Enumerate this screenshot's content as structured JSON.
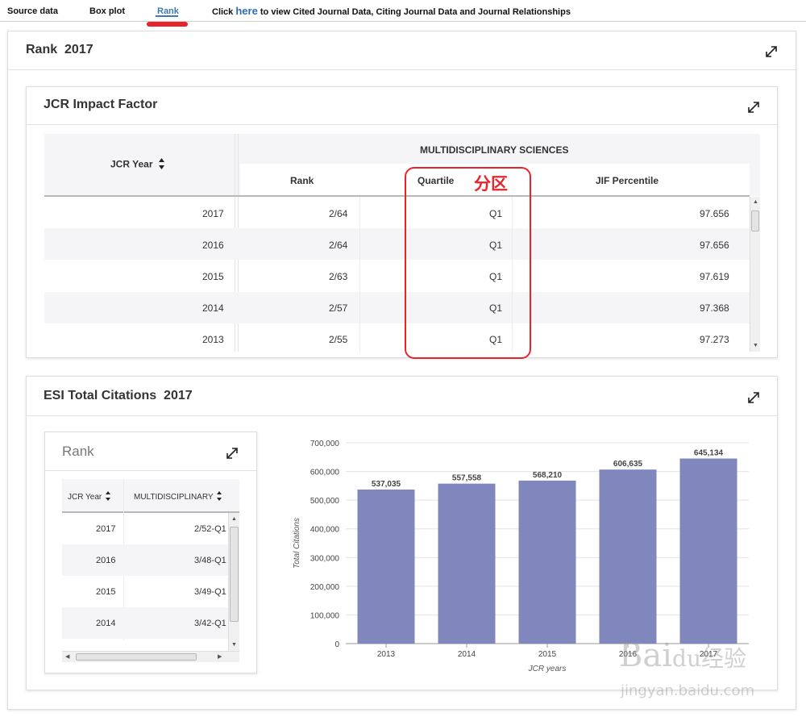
{
  "nav": {
    "tabs": [
      {
        "label": "Source data"
      },
      {
        "label": "Box plot"
      },
      {
        "label": "Rank"
      }
    ],
    "link_prefix": "Click",
    "link_word": "here",
    "link_suffix": "to view Cited Journal Data, Citing Journal Data and Journal Relationships"
  },
  "rank_panel": {
    "title": "Rank",
    "year": "2017"
  },
  "jcr": {
    "title": "JCR Impact Factor",
    "col_year": "JCR Year",
    "group_header": "MULTIDISCIPLINARY SCIENCES",
    "col_rank": "Rank",
    "col_quartile": "Quartile",
    "col_percentile": "JIF Percentile",
    "annotation": "分区",
    "rows": [
      {
        "year": "2017",
        "rank": "2/64",
        "quartile": "Q1",
        "percentile": "97.656"
      },
      {
        "year": "2016",
        "rank": "2/64",
        "quartile": "Q1",
        "percentile": "97.656"
      },
      {
        "year": "2015",
        "rank": "2/63",
        "quartile": "Q1",
        "percentile": "97.619"
      },
      {
        "year": "2014",
        "rank": "2/57",
        "quartile": "Q1",
        "percentile": "97.368"
      },
      {
        "year": "2013",
        "rank": "2/55",
        "quartile": "Q1",
        "percentile": "97.273"
      }
    ]
  },
  "esi": {
    "title": "ESI Total Citations",
    "year": "2017",
    "rank_box": {
      "title": "Rank",
      "col_year": "JCR Year",
      "col_multi": "MULTIDISCIPLINARY",
      "rows": [
        {
          "year": "2017",
          "value": "2/52-Q1"
        },
        {
          "year": "2016",
          "value": "3/48-Q1"
        },
        {
          "year": "2015",
          "value": "3/49-Q1"
        },
        {
          "year": "2014",
          "value": "3/42-Q1"
        }
      ]
    }
  },
  "chart_data": {
    "type": "bar",
    "categories": [
      "2013",
      "2014",
      "2015",
      "2016",
      "2017"
    ],
    "values": [
      537035,
      557558,
      568210,
      606635,
      645134
    ],
    "value_labels": [
      "537,035",
      "557,558",
      "568,210",
      "606,635",
      "645,134"
    ],
    "xlabel": "JCR years",
    "ylabel": "Total Citations",
    "ylim": [
      0,
      700000
    ],
    "yticks": [
      "0",
      "100,000",
      "200,000",
      "300,000",
      "400,000",
      "500,000",
      "600,000",
      "700,000"
    ],
    "bar_color": "#7f87bd",
    "grid": true
  },
  "watermark": {
    "brand": "Bai",
    "brand2": "du",
    "brand3": "经验",
    "url": "jingyan.baidu.com"
  },
  "colors": {
    "accent": "#3d7ab3",
    "annotation": "#e8242b"
  }
}
